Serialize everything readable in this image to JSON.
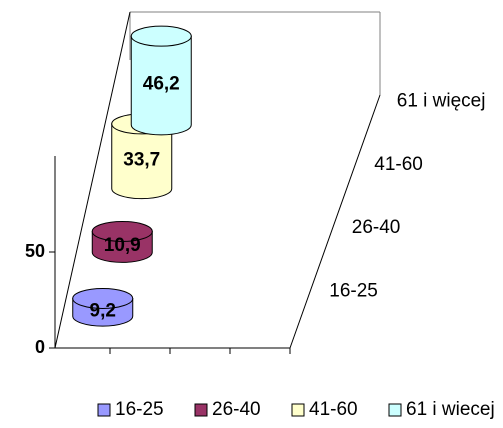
{
  "chart_data": {
    "type": "cylinder",
    "z_categories": [
      "16-25",
      "26-40",
      "41-60",
      "61 i więcej"
    ],
    "series": [
      {
        "name": "16-25",
        "color": "#9999ff",
        "values": [
          9.2
        ],
        "value_labels": [
          "9,2"
        ]
      },
      {
        "name": "26-40",
        "color": "#993366",
        "values": [
          10.9
        ],
        "value_labels": [
          "10,9"
        ]
      },
      {
        "name": "41-60",
        "color": "#ffffcc",
        "values": [
          33.7
        ],
        "value_labels": [
          "33,7"
        ]
      },
      {
        "name": "61 i wiecej",
        "color": "#ccffff",
        "values": [
          46.2
        ],
        "value_labels": [
          "46,2"
        ]
      }
    ],
    "ylim": [
      0,
      100
    ],
    "yticks": [
      0,
      50
    ],
    "legend": "bottom"
  }
}
